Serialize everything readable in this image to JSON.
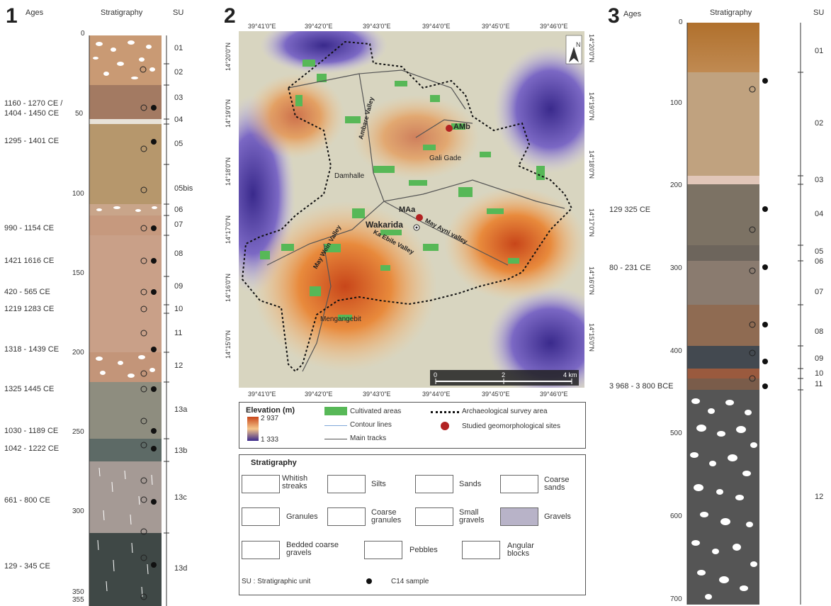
{
  "panel1": {
    "number": "1",
    "col_ages": "Ages",
    "col_strat": "Stratigraphy",
    "col_su": "SU",
    "depths": [
      "0",
      "50",
      "100",
      "150",
      "200",
      "250",
      "300",
      "350",
      "355"
    ],
    "ages": [
      "1160 - 1270 CE /",
      "1404 - 1450 CE",
      "1295 - 1401 CE",
      "990 - 1154 CE",
      "1421  1616 CE",
      "420 - 565 CE",
      "1219  1283 CE",
      "1318 - 1439 CE",
      "1325  1445 CE",
      "1030 - 1189 CE",
      "1042 - 1222 CE",
      "661 - 800 CE",
      "129 - 345 CE"
    ],
    "units": [
      "01",
      "02",
      "03",
      "04",
      "05",
      "05bis",
      "06",
      "07",
      "08",
      "09",
      "10",
      "11",
      "12",
      "13a",
      "13b",
      "13c",
      "13d"
    ]
  },
  "panel2": {
    "number": "2",
    "top_lon": [
      "39°41'0\"E",
      "39°42'0\"E",
      "39°43'0\"E",
      "39°44'0\"E",
      "39°45'0\"E",
      "39°46'0\"E"
    ],
    "bottom_lon": [
      "39°41'0\"E",
      "39°42'0\"E",
      "39°43'0\"E",
      "39°44'0\"E",
      "39°45'0\"E",
      "39°46'0\"E"
    ],
    "lat": [
      "14°20'0\"N",
      "14°19'0\"N",
      "14°18'0\"N",
      "14°17'0\"N",
      "14°16'0\"N",
      "14°15'0\"N"
    ],
    "places": {
      "amb": "AMb",
      "gali": "Gali Gade",
      "damhalle": "Damhalle",
      "maa": "MAa",
      "wakarida": "Wakarida",
      "mengangebit": "Mengangebit",
      "ambare": "Ambare Valley",
      "maywein": "May  Wein  Valley",
      "kaebile": "Ka  Ebile  Valley",
      "mayayni": "May  Ayni  valley"
    },
    "north": "N",
    "scale": [
      "0",
      "2",
      "4 km"
    ]
  },
  "legend": {
    "elevation_title": "Elevation (m)",
    "elev_max": "2 937",
    "elev_min": "1 333",
    "cultivated": "Cultivated areas",
    "contours": "Contour lines",
    "tracks": "Main tracks",
    "survey": "Archaeological survey area",
    "sites": "Studied geomorphological sites",
    "colors": {
      "cultivated": "#57b857",
      "site": "#b22222",
      "elev_high": "#c8461a",
      "elev_mid": "#f5c58a",
      "elev_low": "#3a2a8c"
    }
  },
  "strat_legend": {
    "title": "Stratigraphy",
    "items": [
      "Whitish streaks",
      "Silts",
      "Sands",
      "Coarse sands",
      "Granules",
      "Coarse granules",
      "Small gravels",
      "Gravels",
      "Bedded coarse gravels",
      "Pebbles",
      "Angular blocks"
    ],
    "su_note": "SU : Stratigraphic unit",
    "c14": "C14 sample"
  },
  "panel3": {
    "number": "3",
    "col_ages": "Ages",
    "col_strat": "Stratigraphy",
    "col_su": "SU",
    "depths": [
      "0",
      "100",
      "200",
      "300",
      "400",
      "500",
      "600",
      "700"
    ],
    "ages": [
      "129   325 CE",
      "80 - 231 CE",
      "3 968 - 3 800 BCE"
    ],
    "units": [
      "01",
      "02",
      "03",
      "04",
      "05",
      "06",
      "07",
      "08",
      "09",
      "10",
      "11",
      "12"
    ]
  }
}
